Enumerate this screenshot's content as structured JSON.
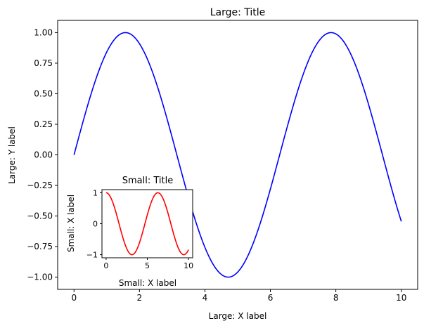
{
  "chart_data": [
    {
      "type": "line",
      "title": "Large: Title",
      "xlabel": "Large: X label",
      "ylabel": "Large: Y label",
      "xlim": [
        -0.5,
        10.5
      ],
      "ylim": [
        -1.1,
        1.1
      ],
      "xticks": [
        0,
        2,
        4,
        6,
        8,
        10
      ],
      "xtick_labels": [
        "0",
        "2",
        "4",
        "6",
        "8",
        "10"
      ],
      "yticks": [
        1.0,
        0.75,
        0.5,
        0.25,
        0.0,
        -0.25,
        -0.5,
        -0.75,
        -1.0
      ],
      "ytick_labels": [
        "1.00",
        "0.75",
        "0.50",
        "0.25",
        "0.00",
        "−0.25",
        "−0.50",
        "−0.75",
        "−1.00"
      ],
      "grid": false,
      "series": [
        {
          "function": "sin(x)",
          "x_range": [
            0,
            10
          ],
          "color": "#0000ff"
        }
      ]
    },
    {
      "type": "line",
      "title": "Small: Title",
      "xlabel": "Small: X label",
      "ylabel": "Small: X label",
      "xlim": [
        -0.5,
        10.5
      ],
      "ylim": [
        -1.1,
        1.1
      ],
      "xticks": [
        0,
        5,
        10
      ],
      "xtick_labels": [
        "0",
        "5",
        "10"
      ],
      "yticks": [
        1,
        0,
        -1
      ],
      "ytick_labels": [
        "1",
        "0",
        "−1"
      ],
      "grid": false,
      "series": [
        {
          "function": "cos(x)",
          "x_range": [
            0,
            10
          ],
          "color": "#ff0000"
        }
      ]
    }
  ]
}
